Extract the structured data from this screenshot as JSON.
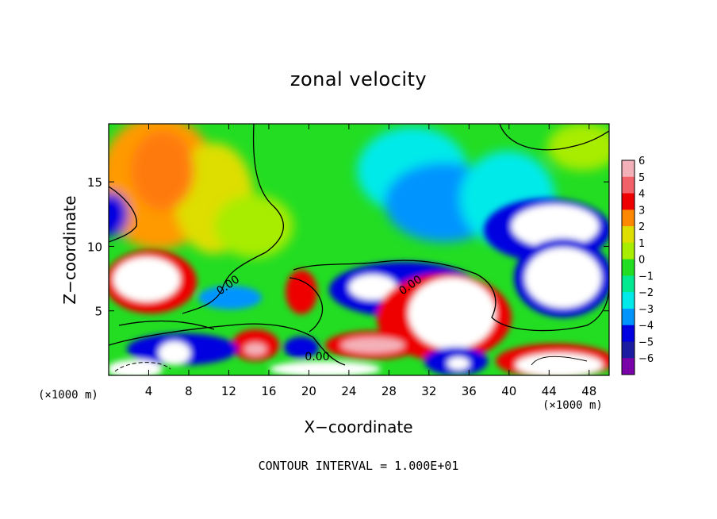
{
  "chart_data": {
    "type": "heatmap",
    "title": "zonal velocity",
    "xlabel": "X−coordinate",
    "ylabel": "Z−coordinate",
    "x_unit": "(×1000 m)",
    "y_unit": "(×1000 m)",
    "xlim": [
      0,
      50
    ],
    "ylim": [
      0,
      19.5
    ],
    "x_ticks": [
      4,
      8,
      12,
      16,
      20,
      24,
      28,
      32,
      36,
      40,
      44,
      48
    ],
    "y_ticks": [
      5,
      10,
      15
    ],
    "colorbar": {
      "levels": [
        6,
        5,
        4,
        3,
        2,
        1,
        0,
        -1,
        -2,
        -3,
        -4,
        -5,
        -6
      ],
      "labels": [
        "6",
        "5",
        "4",
        "3",
        "2",
        "1",
        "0",
        "−1",
        "−2",
        "−3",
        "−4",
        "−5",
        "−6"
      ]
    },
    "contour_labels": [
      "0.00",
      "0.00",
      "0.00"
    ],
    "contour_interval": "CONTOUR INTERVAL = 1.000E+01"
  },
  "colors": {
    "scale": [
      "#f4b0b8",
      "#f26068",
      "#ee0000",
      "#ff8800",
      "#dede00",
      "#a8ec00",
      "#22dd22",
      "#00e890",
      "#00eaea",
      "#0094ff",
      "#0000e0",
      "#1c1ca0",
      "#7a00a8"
    ]
  }
}
